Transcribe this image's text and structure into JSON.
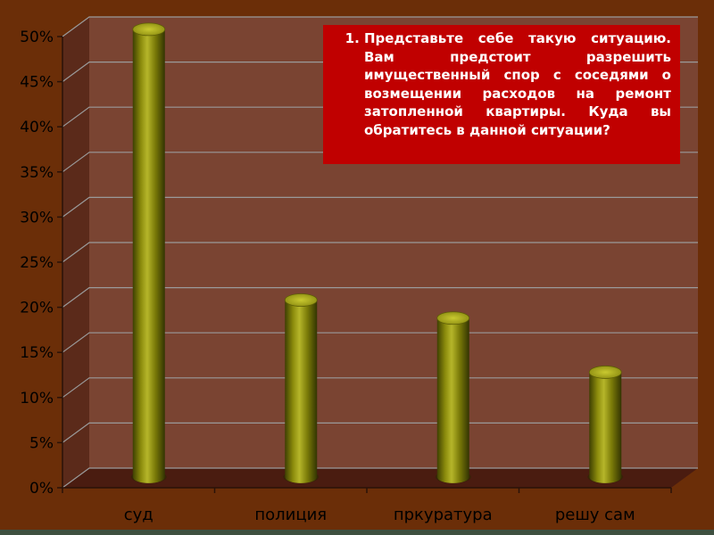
{
  "chart_data": {
    "type": "bar",
    "categories": [
      "суд",
      "полиция",
      "пркуратура",
      "решу сам"
    ],
    "values": [
      50,
      20,
      18,
      12
    ],
    "ylim": [
      0,
      50
    ],
    "ytick_step": 5,
    "ytick_labels": [
      "0%",
      "5%",
      "10%",
      "15%",
      "20%",
      "25%",
      "30%",
      "35%",
      "40%",
      "45%",
      "50%"
    ],
    "grid": true,
    "style": "3d-cylinder"
  },
  "question": {
    "number": "1.",
    "text": "Представьте себе такую ситуацию. Вам предстоит разрешить имущественный спор с соседями о возмещении расходов на ремонт затопленной квартиры. Куда вы обратитесь в данной ситуации?"
  },
  "colors": {
    "background": "#6b2e08",
    "wall": "#7a4432",
    "floor": "#4a1c10",
    "bar": "#7a7a08",
    "question_box": "#c00000"
  }
}
